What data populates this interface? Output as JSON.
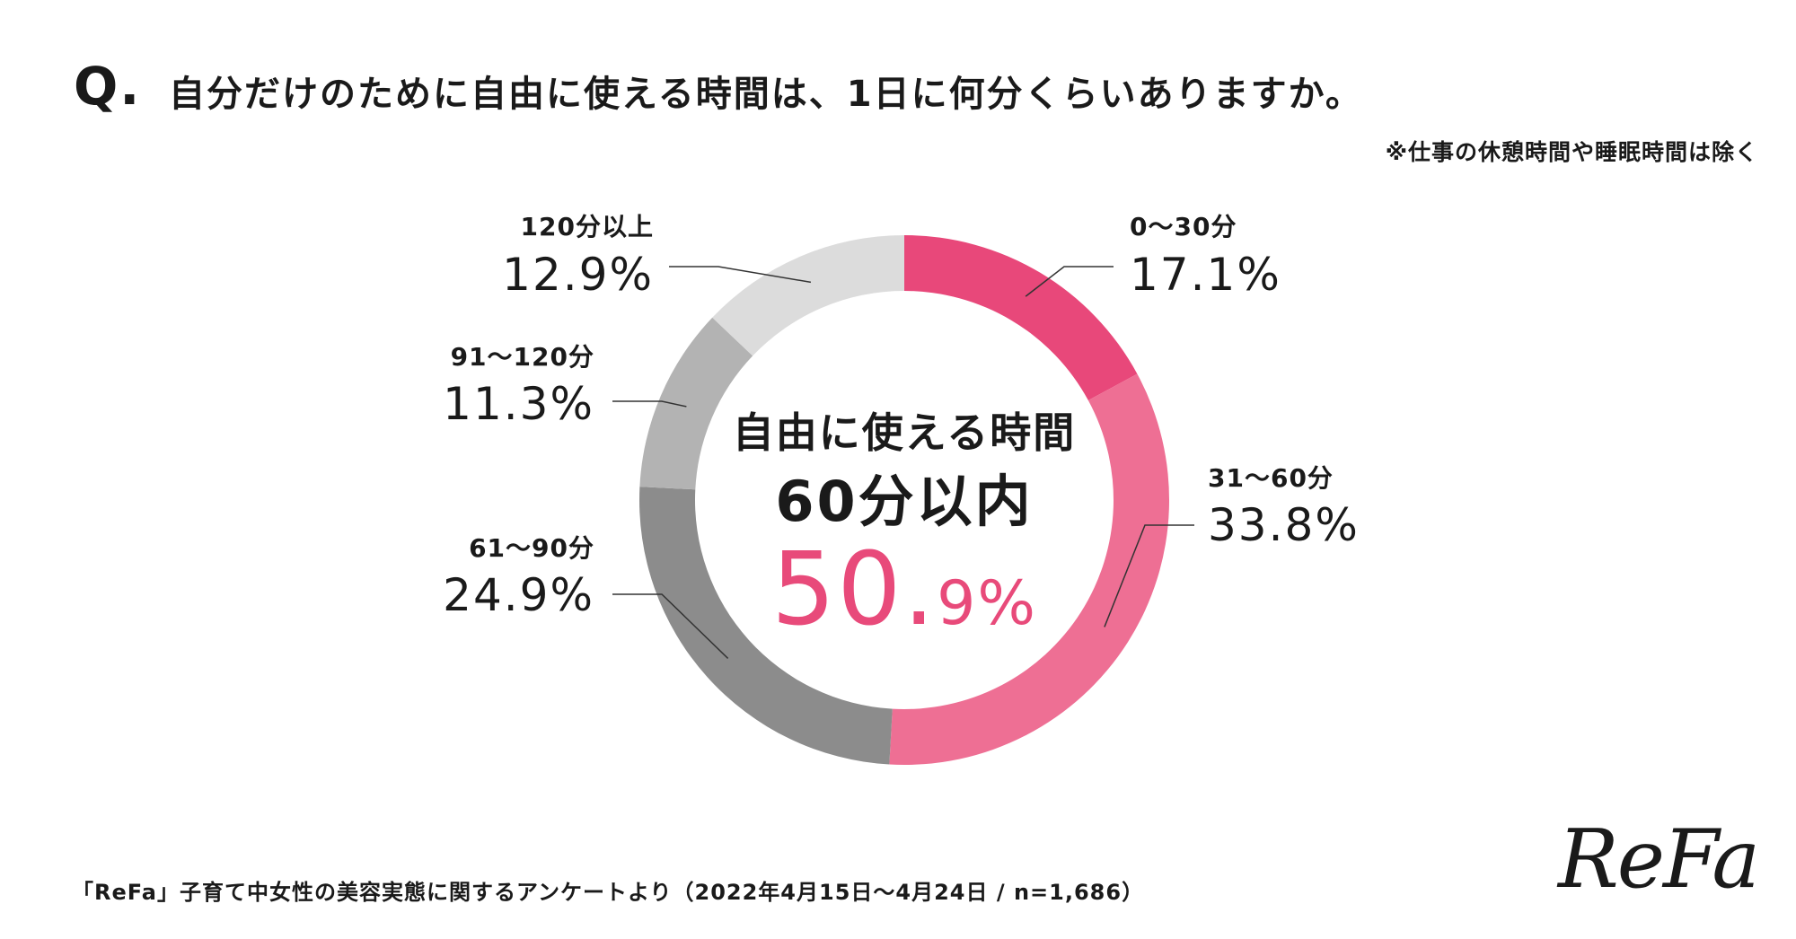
{
  "header": {
    "q_mark": "Q.",
    "question": "自分だけのために自由に使える時間は、1日に何分くらいありますか。",
    "note": "※仕事の休憩時間や睡眠時間は除く"
  },
  "center": {
    "line1": "自由に使える時間",
    "line2": "60分以内",
    "value_main": "50.",
    "value_tail": "9%"
  },
  "footer": {
    "source": "「ReFa」子育て中女性の美容実態に関するアンケートより（2022年4月15日〜4月24日 / n=1,686）"
  },
  "logo": {
    "text": "ReFa"
  },
  "colors": {
    "accent": "#e84a7a",
    "slices": [
      "#e8487a",
      "#ee6f94",
      "#8c8c8c",
      "#b3b3b3",
      "#dcdcdc"
    ]
  },
  "chart_data": {
    "type": "pie",
    "subtype": "donut",
    "categories": [
      "0〜30分",
      "31〜60分",
      "61〜90分",
      "91〜120分",
      "120分以上"
    ],
    "values": [
      17.1,
      33.8,
      24.9,
      11.3,
      12.9
    ],
    "value_labels": [
      "17.1%",
      "33.8%",
      "24.9%",
      "11.3%",
      "12.9%"
    ],
    "start": "top",
    "direction": "clockwise"
  }
}
